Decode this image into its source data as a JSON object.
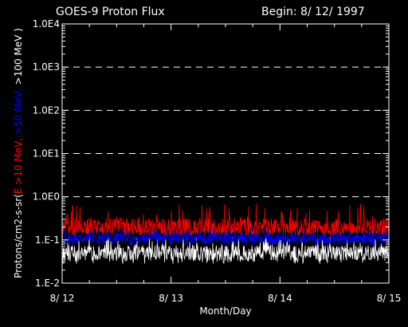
{
  "chart_data": {
    "type": "line",
    "title": "GOES-9 Proton Flux",
    "begin_label": "Begin: 8/ 12/ 1997",
    "xlabel": "Month/Day",
    "ylabel_parts": [
      {
        "text": "Protons/cm2-s-sr(",
        "color": "#ffffff"
      },
      {
        "text": "E >10 MeV, ",
        "color": "#ff0000"
      },
      {
        "text": ">50 MeV, ",
        "color": "#0000ff"
      },
      {
        "text": ">100 MeV )",
        "color": "#ffffff"
      }
    ],
    "y_scale": "log",
    "ylim": [
      0.01,
      10000
    ],
    "y_ticks": [
      {
        "value": 10000,
        "label": "1.0E4"
      },
      {
        "value": 1000,
        "label": "1.0E3"
      },
      {
        "value": 100,
        "label": "1.0E2"
      },
      {
        "value": 10,
        "label": "1.0E1"
      },
      {
        "value": 1,
        "label": "1.0E0"
      },
      {
        "value": 0.1,
        "label": "1.E-1"
      },
      {
        "value": 0.01,
        "label": "1.E-2"
      }
    ],
    "gridlines": [
      1000,
      100,
      10,
      1
    ],
    "xlim": [
      12,
      15
    ],
    "x_ticks": [
      {
        "value": 12,
        "label": "8/ 12"
      },
      {
        "value": 13,
        "label": "8/ 13"
      },
      {
        "value": 14,
        "label": "8/ 14"
      },
      {
        "value": 15,
        "label": "8/ 15"
      }
    ],
    "series": [
      {
        "name": "E >10 MeV",
        "color": "#ff0000",
        "typical": 0.2,
        "min": 0.13,
        "max": 0.7
      },
      {
        "name": ">50 MeV",
        "color": "#0000ff",
        "typical": 0.11,
        "min": 0.07,
        "max": 0.2
      },
      {
        "name": ">100 MeV",
        "color": "#ffffff",
        "typical": 0.05,
        "min": 0.028,
        "max": 0.12
      }
    ]
  }
}
